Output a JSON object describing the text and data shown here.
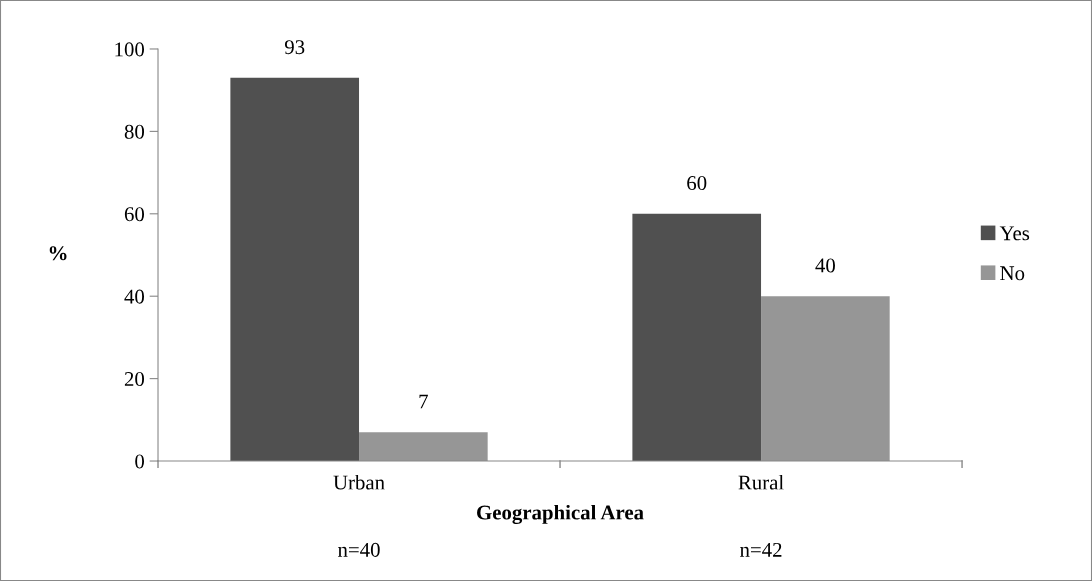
{
  "chart_data": {
    "type": "bar",
    "xlabel": "Geographical Area",
    "ylabel": "%",
    "categories": [
      "Urban",
      "Rural"
    ],
    "series": [
      {
        "name": "Yes",
        "color": "#505050",
        "values": [
          93,
          60
        ]
      },
      {
        "name": "No",
        "color": "#969696",
        "values": [
          7,
          40
        ]
      }
    ],
    "ylim": [
      0,
      100
    ],
    "yticks": [
      0,
      20,
      40,
      60,
      80,
      100
    ],
    "data_labels": true,
    "grid": false,
    "legend": "right",
    "annotations": [
      "n=40",
      "n=42"
    ]
  }
}
